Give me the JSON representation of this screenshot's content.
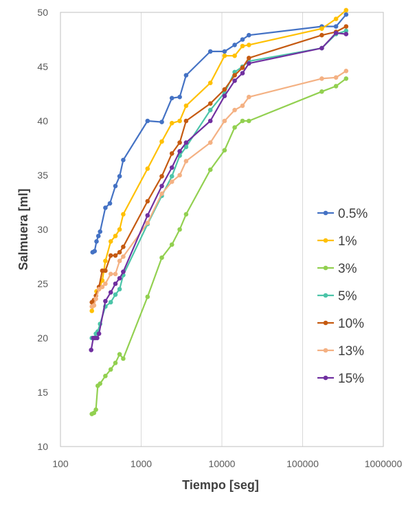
{
  "chart_data": {
    "type": "line",
    "xlabel": "Tiempo [seg]",
    "ylabel": "Salmuera [ml]",
    "xscale": "log",
    "xlim": [
      100,
      1000000
    ],
    "ylim": [
      10,
      50
    ],
    "xticks": [
      "100",
      "1000",
      "10000",
      "100000",
      "1000000"
    ],
    "yticks": [
      "10",
      "15",
      "20",
      "25",
      "30",
      "35",
      "40",
      "45",
      "50"
    ],
    "grid": "vertical",
    "legend_position": "right",
    "series": [
      {
        "name": "0.5%",
        "color": "#4472C4",
        "x": [
          250,
          265,
          280,
          295,
          310,
          360,
          410,
          480,
          540,
          600,
          1200,
          1800,
          2400,
          3000,
          3600,
          7200,
          10800,
          14400,
          18000,
          21600,
          172800,
          259200,
          345600
        ],
        "y": [
          27.9,
          28.0,
          28.9,
          29.4,
          29.8,
          32.0,
          32.4,
          34.0,
          34.9,
          36.4,
          40.0,
          39.9,
          42.1,
          42.2,
          44.2,
          46.4,
          46.4,
          47.0,
          47.5,
          47.9,
          48.7,
          48.7,
          49.8
        ]
      },
      {
        "name": "1%",
        "color": "#FFC000",
        "x": [
          245,
          260,
          280,
          300,
          330,
          360,
          420,
          480,
          540,
          600,
          1200,
          1800,
          2400,
          3000,
          3600,
          7200,
          10800,
          14400,
          18000,
          21600,
          172800,
          259200,
          345600
        ],
        "y": [
          22.5,
          23.0,
          24.3,
          24.5,
          25.3,
          27.1,
          28.9,
          29.4,
          30.0,
          31.4,
          35.6,
          38.1,
          39.8,
          40.0,
          41.4,
          43.5,
          46.0,
          46.0,
          46.9,
          47.0,
          48.5,
          49.4,
          50.2
        ]
      },
      {
        "name": "3%",
        "color": "#92D050",
        "x": [
          245,
          260,
          275,
          290,
          310,
          360,
          420,
          480,
          540,
          600,
          1200,
          1800,
          2400,
          3000,
          3600,
          7200,
          10800,
          14400,
          18000,
          21600,
          172800,
          259200,
          345600
        ],
        "y": [
          13.0,
          13.1,
          13.4,
          15.6,
          15.8,
          16.5,
          17.1,
          17.7,
          18.5,
          18.1,
          23.8,
          27.4,
          28.6,
          30.0,
          31.4,
          35.5,
          37.3,
          39.4,
          40.0,
          40.0,
          42.7,
          43.2,
          43.9
        ]
      },
      {
        "name": "5%",
        "color": "#4BC4A8",
        "x": [
          245,
          260,
          275,
          290,
          310,
          360,
          420,
          480,
          540,
          600,
          1200,
          1800,
          2400,
          3000,
          3600,
          7200,
          10800,
          14400,
          18000,
          21600,
          172800,
          259200,
          345600
        ],
        "y": [
          20.0,
          20.0,
          20.4,
          20.6,
          21.3,
          22.9,
          23.3,
          24.0,
          24.5,
          25.8,
          30.5,
          33.1,
          34.9,
          36.8,
          37.6,
          41.0,
          42.6,
          44.5,
          45.0,
          45.5,
          46.7,
          48.0,
          48.3
        ]
      },
      {
        "name": "10%",
        "color": "#C55A11",
        "x": [
          245,
          260,
          275,
          300,
          330,
          360,
          420,
          480,
          540,
          600,
          1200,
          1800,
          2400,
          3000,
          3600,
          7200,
          10800,
          14400,
          18000,
          21600,
          172800,
          259200,
          345600
        ],
        "y": [
          23.3,
          23.5,
          23.9,
          24.7,
          26.2,
          26.2,
          27.6,
          27.6,
          27.9,
          28.4,
          32.6,
          34.9,
          37.0,
          38.0,
          40.0,
          41.6,
          42.9,
          44.2,
          44.9,
          45.8,
          47.9,
          48.2,
          48.7
        ]
      },
      {
        "name": "13%",
        "color": "#F4B183",
        "x": [
          245,
          260,
          275,
          300,
          330,
          360,
          420,
          480,
          540,
          600,
          1200,
          1800,
          2400,
          3000,
          3600,
          7200,
          10800,
          14400,
          18000,
          21600,
          172800,
          259200,
          345600
        ],
        "y": [
          22.9,
          23.0,
          23.6,
          24.5,
          24.7,
          25.0,
          25.9,
          25.9,
          27.1,
          27.5,
          30.6,
          33.3,
          34.4,
          35.0,
          36.3,
          38.0,
          40.0,
          41.0,
          41.4,
          42.2,
          43.9,
          44.0,
          44.6
        ]
      },
      {
        "name": "15%",
        "color": "#7030A0",
        "x": [
          240,
          255,
          270,
          285,
          300,
          360,
          420,
          480,
          540,
          600,
          1200,
          1800,
          2400,
          3000,
          3600,
          7200,
          10800,
          14400,
          18000,
          21600,
          172800,
          259200,
          345600
        ],
        "y": [
          18.9,
          20.0,
          20.0,
          20.0,
          20.4,
          23.4,
          24.2,
          25.0,
          25.5,
          26.1,
          31.3,
          34.0,
          35.7,
          37.2,
          38.0,
          40.0,
          42.3,
          43.7,
          44.4,
          45.3,
          46.7,
          48.1,
          48.0
        ]
      }
    ]
  }
}
